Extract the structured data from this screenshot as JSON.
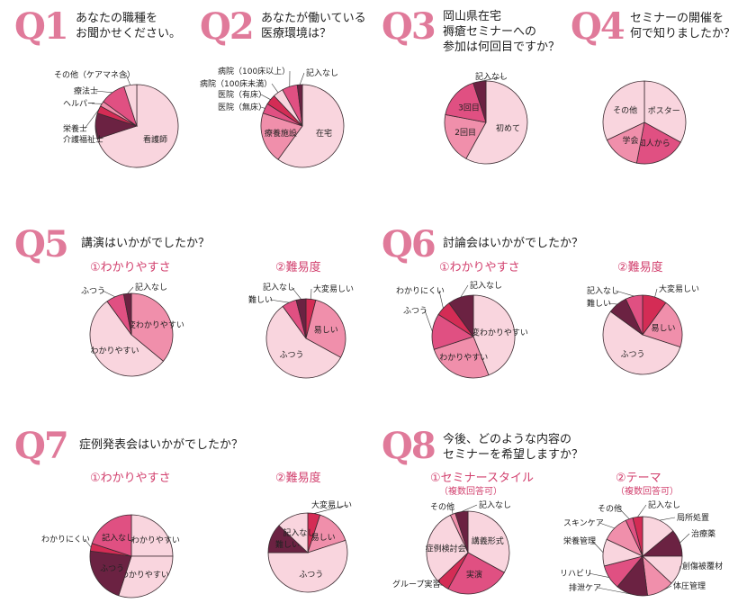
{
  "colors": {
    "accent": "#e07a9a",
    "pink_light": "#f9d5de",
    "pink_mid": "#f08fab",
    "pink_bright": "#e05082",
    "dark": "#6b2242",
    "red": "#d42c55",
    "outline": "#333333"
  },
  "questions": [
    {
      "num": "Q1",
      "text": "あなたの職種を\nお聞かせください。"
    },
    {
      "num": "Q2",
      "text": "あなたが働いている\n医療環境は？"
    },
    {
      "num": "Q3",
      "text": "岡山県在宅\n褥瘡セミナーへの\n参加は何回目ですか？"
    },
    {
      "num": "Q4",
      "text": "セミナーの開催を\n何で知りましたか？"
    },
    {
      "num": "Q5",
      "text": "講演はいかがでしたか？"
    },
    {
      "num": "Q6",
      "text": "討論会はいかがでしたか？"
    },
    {
      "num": "Q7",
      "text": "症例発表会はいかがでしたか？"
    },
    {
      "num": "Q8",
      "text": "今後、どのような内容の\nセミナーを希望しますか？"
    }
  ],
  "subtitles": {
    "q5a": "①わかりやすさ",
    "q5b": "②難易度",
    "q6a": "①わかりやすさ",
    "q6b": "②難易度",
    "q7a": "①わかりやすさ",
    "q7b": "②難易度",
    "q8a": "①セミナースタイル",
    "q8b": "②テーマ",
    "q8a_note": "（複数回答可）",
    "q8b_note": "（複数回答可）"
  },
  "chart_data": [
    {
      "id": "q1",
      "type": "pie",
      "slices": [
        {
          "label": "看護師",
          "value": 70,
          "color": "#f9d5de",
          "inside": true
        },
        {
          "label": "介護福祉士",
          "value": 10,
          "color": "#6b2242"
        },
        {
          "label": "栄養士",
          "value": 3,
          "color": "#d42c55"
        },
        {
          "label": "ヘルパー",
          "value": 2,
          "color": "#f08fab"
        },
        {
          "label": "療法士",
          "value": 10,
          "color": "#e05082"
        },
        {
          "label": "その他（ケアマネ含）",
          "value": 5,
          "color": "#f9d5de"
        }
      ]
    },
    {
      "id": "q2",
      "type": "pie",
      "slices": [
        {
          "label": "在宅",
          "value": 60,
          "color": "#f9d5de",
          "inside": true
        },
        {
          "label": "療養施設",
          "value": 20,
          "color": "#f08fab",
          "inside": true
        },
        {
          "label": "医院（無床）",
          "value": 4,
          "color": "#e05082"
        },
        {
          "label": "医院（有床）",
          "value": 4,
          "color": "#d42c55"
        },
        {
          "label": "病院（100床未満）",
          "value": 4,
          "color": "#f9d5de"
        },
        {
          "label": "病院（100床以上）",
          "value": 6,
          "color": "#e05082"
        },
        {
          "label": "記入なし",
          "value": 2,
          "color": "#6b2242"
        }
      ]
    },
    {
      "id": "q3",
      "type": "pie",
      "slices": [
        {
          "label": "初めて",
          "value": 58,
          "color": "#f9d5de",
          "inside": true
        },
        {
          "label": "2回目",
          "value": 20,
          "color": "#f08fab",
          "inside": true
        },
        {
          "label": "3回目",
          "value": 17,
          "color": "#e05082",
          "inside": true
        },
        {
          "label": "記入なし",
          "value": 5,
          "color": "#6b2242"
        }
      ]
    },
    {
      "id": "q4",
      "type": "pie",
      "slices": [
        {
          "label": "ポスター",
          "value": 33,
          "color": "#f9d5de",
          "inside": true
        },
        {
          "label": "知人から",
          "value": 20,
          "color": "#e05082",
          "inside": true
        },
        {
          "label": "学会",
          "value": 15,
          "color": "#f08fab",
          "inside": true
        },
        {
          "label": "その他",
          "value": 32,
          "color": "#f9d5de",
          "inside": true
        }
      ]
    },
    {
      "id": "q5a",
      "type": "pie",
      "slices": [
        {
          "label": "大変わかりやすい",
          "value": 36,
          "color": "#f08fab",
          "inside": true
        },
        {
          "label": "わかりやすい",
          "value": 54,
          "color": "#f9d5de",
          "inside": true
        },
        {
          "label": "ふつう",
          "value": 7,
          "color": "#e05082"
        },
        {
          "label": "記入なし",
          "value": 3,
          "color": "#6b2242"
        }
      ]
    },
    {
      "id": "q5b",
      "type": "pie",
      "slices": [
        {
          "label": "大変易しい",
          "value": 4,
          "color": "#d42c55"
        },
        {
          "label": "易しい",
          "value": 29,
          "color": "#f08fab",
          "inside": true
        },
        {
          "label": "ふつう",
          "value": 57,
          "color": "#f9d5de",
          "inside": true
        },
        {
          "label": "難しい",
          "value": 6,
          "color": "#e05082"
        },
        {
          "label": "記入なし",
          "value": 4,
          "color": "#6b2242"
        }
      ]
    },
    {
      "id": "q6a",
      "type": "pie",
      "slices": [
        {
          "label": "大変わかりやすい",
          "value": 44,
          "color": "#f9d5de",
          "inside": true
        },
        {
          "label": "わかりやすい",
          "value": 26,
          "color": "#f08fab",
          "inside": true
        },
        {
          "label": "ふつう",
          "value": 14,
          "color": "#e05082"
        },
        {
          "label": "わかりにくい",
          "value": 6,
          "color": "#d42c55"
        },
        {
          "label": "記入なし",
          "value": 10,
          "color": "#6b2242"
        }
      ]
    },
    {
      "id": "q6b",
      "type": "pie",
      "slices": [
        {
          "label": "大変易しい",
          "value": 10,
          "color": "#d42c55"
        },
        {
          "label": "易しい",
          "value": 20,
          "color": "#f08fab",
          "inside": true
        },
        {
          "label": "ふつう",
          "value": 55,
          "color": "#f9d5de",
          "inside": true
        },
        {
          "label": "難しい",
          "value": 8,
          "color": "#6b2242"
        },
        {
          "label": "記入なし",
          "value": 7,
          "color": "#e05082"
        }
      ]
    },
    {
      "id": "q7a",
      "type": "pie",
      "slices": [
        {
          "label": "大変わかりやすい",
          "value": 25,
          "color": "#f9d5de",
          "inside": true
        },
        {
          "label": "わかりやすい",
          "value": 30,
          "color": "#f9d5de",
          "inside": true
        },
        {
          "label": "ふつう",
          "value": 22,
          "color": "#6b2242",
          "inside": true
        },
        {
          "label": "わかりにくい",
          "value": 3,
          "color": "#d42c55"
        },
        {
          "label": "記入なし",
          "value": 20,
          "color": "#e05082",
          "inside": true
        }
      ]
    },
    {
      "id": "q7b",
      "type": "pie",
      "slices": [
        {
          "label": "大変易しい",
          "value": 5,
          "color": "#d42c55"
        },
        {
          "label": "易しい",
          "value": 15,
          "color": "#f08fab",
          "inside": true
        },
        {
          "label": "ふつう",
          "value": 55,
          "color": "#f9d5de",
          "inside": true
        },
        {
          "label": "難しい",
          "value": 12,
          "color": "#6b2242",
          "inside": true
        },
        {
          "label": "記入なし",
          "value": 13,
          "color": "#f9d5de",
          "inside": true
        }
      ]
    },
    {
      "id": "q8a",
      "type": "pie",
      "slices": [
        {
          "label": "講義形式",
          "value": 33,
          "color": "#f9d5de",
          "inside": true
        },
        {
          "label": "実演",
          "value": 25,
          "color": "#e05082",
          "inside": true
        },
        {
          "label": "グループ実習",
          "value": 5,
          "color": "#d42c55"
        },
        {
          "label": "症例検討会",
          "value": 30,
          "color": "#f9d5de",
          "inside": true
        },
        {
          "label": "その他",
          "value": 2,
          "color": "#f08fab"
        },
        {
          "label": "記入なし",
          "value": 5,
          "color": "#6b2242"
        }
      ]
    },
    {
      "id": "q8b",
      "type": "pie",
      "slices": [
        {
          "label": "局所処置",
          "value": 14,
          "color": "#f9d5de"
        },
        {
          "label": "治療薬",
          "value": 11,
          "color": "#6b2242"
        },
        {
          "label": "創傷被覆材",
          "value": 12,
          "color": "#f9d5de"
        },
        {
          "label": "体圧管理",
          "value": 11,
          "color": "#f08fab"
        },
        {
          "label": "排泄ケア",
          "value": 13,
          "color": "#6b2242"
        },
        {
          "label": "リハビリ",
          "value": 10,
          "color": "#e05082"
        },
        {
          "label": "栄養管理",
          "value": 11,
          "color": "#f9d5de"
        },
        {
          "label": "スキンケア",
          "value": 11,
          "color": "#f08fab"
        },
        {
          "label": "その他",
          "value": 3,
          "color": "#e05082"
        },
        {
          "label": "記入なし",
          "value": 4,
          "color": "#d42c55"
        }
      ]
    }
  ]
}
